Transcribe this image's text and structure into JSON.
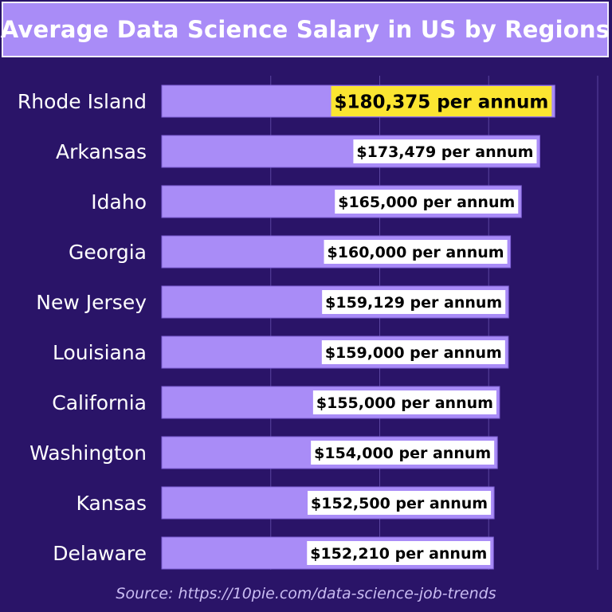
{
  "colors": {
    "background": "#2a1468",
    "title_bg": "#a98cf7",
    "bar": "#a98cf7",
    "bar_edge": "#7e5fd6",
    "highlight": "#fbe531",
    "label_bg": "#ffffff",
    "gridline": "#5b45a0"
  },
  "source": "Source: https://10pie.com/data-science-job-trends",
  "chart_data": {
    "type": "bar",
    "orientation": "horizontal",
    "title": "Average Data Science Salary in US by Regions",
    "categories": [
      "Rhode Island",
      "Arkansas",
      "Idaho",
      "Georgia",
      "New Jersey",
      "Louisiana",
      "California",
      "Washington",
      "Kansas",
      "Delaware"
    ],
    "values": [
      180375,
      173479,
      165000,
      160000,
      159129,
      159000,
      155000,
      154000,
      152500,
      152210
    ],
    "data_labels": [
      "$180,375 per annum",
      "$173,479 per annum",
      "$165,000 per annum",
      "$160,000 per annum",
      "$159,129 per annum",
      "$159,000 per annum",
      "$155,000 per annum",
      "$154,000 per annum",
      "$152,500 per annum",
      "$152,210 per annum"
    ],
    "highlighted_category": "Rhode Island",
    "xlim": [
      0,
      200000
    ],
    "grid": true,
    "legend": "none",
    "xlabel": "",
    "ylabel": ""
  }
}
